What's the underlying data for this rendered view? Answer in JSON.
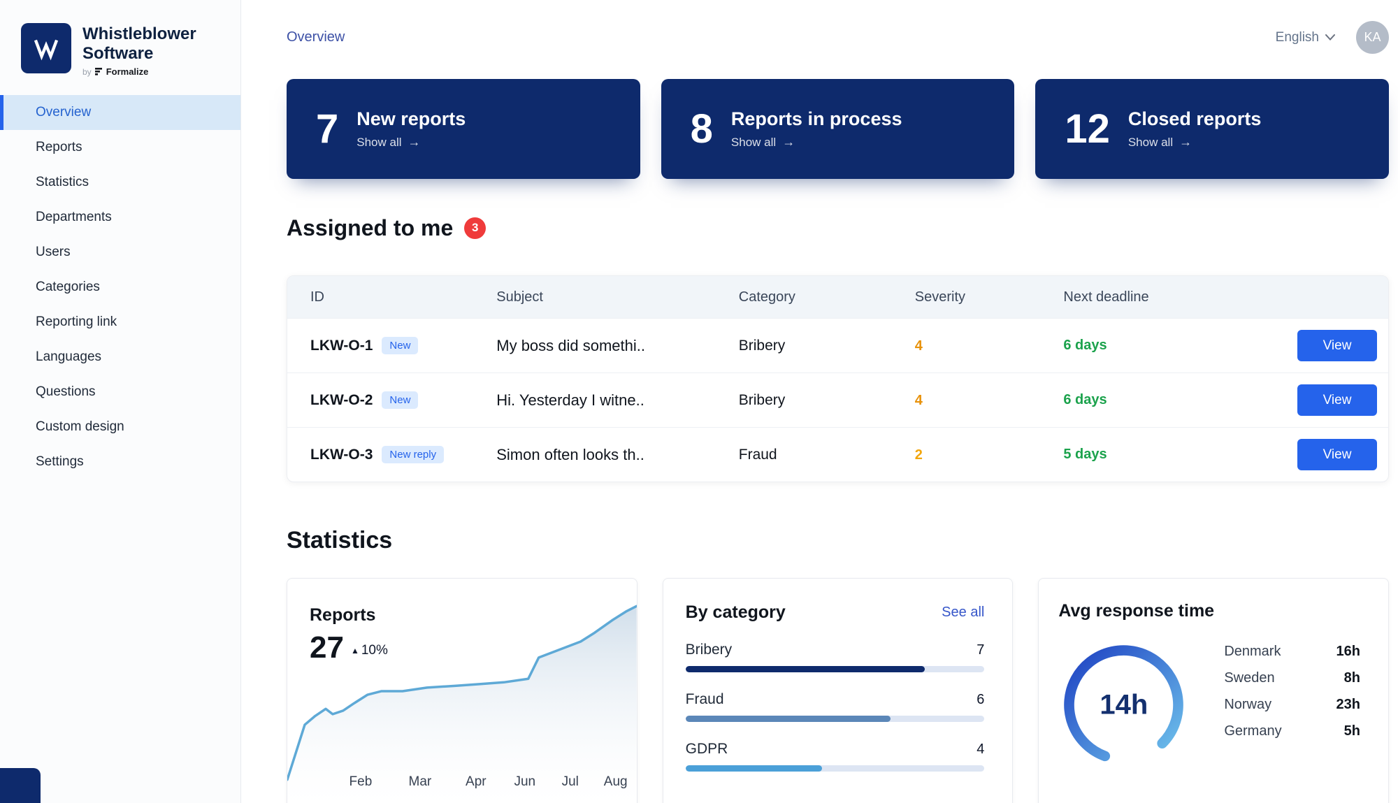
{
  "theme": {
    "navy": "#0e2a6c",
    "primary_blue": "#2563eb",
    "success_green": "#1ba24c",
    "danger_red": "#ef3b3b",
    "table_header_bg": "#f1f5f9",
    "tag_bg": "#dbeafe",
    "tag_text": "#2563eb"
  },
  "icons": {
    "arrow_right": "→",
    "trend_up": "▲"
  },
  "sidebar": {
    "brand": {
      "title_line1": "Whistleblower",
      "title_line2": "Software",
      "byline_prefix": "by",
      "byline_brand": "Formalize"
    },
    "items": [
      {
        "label": "Overview",
        "active": true
      },
      {
        "label": "Reports"
      },
      {
        "label": "Statistics"
      },
      {
        "label": "Departments"
      },
      {
        "label": "Users"
      },
      {
        "label": "Categories"
      },
      {
        "label": "Reporting link"
      },
      {
        "label": "Languages"
      },
      {
        "label": "Questions"
      },
      {
        "label": "Custom design"
      },
      {
        "label": "Settings"
      }
    ]
  },
  "header": {
    "breadcrumb": "Overview",
    "language": "English",
    "avatar": "KA"
  },
  "summary_cards": [
    {
      "count": "7",
      "label": "New reports",
      "link_label": "Show all"
    },
    {
      "count": "8",
      "label": "Reports in process",
      "link_label": "Show all"
    },
    {
      "count": "12",
      "label": "Closed reports",
      "link_label": "Show all"
    }
  ],
  "assigned": {
    "title": "Assigned to me",
    "badge": "3",
    "columns": {
      "id": "ID",
      "subject": "Subject",
      "category": "Category",
      "severity": "Severity",
      "deadline": "Next deadline"
    },
    "view_label": "View",
    "rows": [
      {
        "id": "LKW-O-1",
        "tag": "New",
        "subject": "My boss did somethi..",
        "category": "Bribery",
        "severity": "4",
        "severity_color": "#e8920b",
        "deadline": "6 days"
      },
      {
        "id": "LKW-O-2",
        "tag": "New",
        "subject": "Hi. Yesterday I witne..",
        "category": "Bribery",
        "severity": "4",
        "severity_color": "#e8920b",
        "deadline": "6 days"
      },
      {
        "id": "LKW-O-3",
        "tag": "New reply",
        "subject": "Simon often looks th..",
        "category": "Fraud",
        "severity": "2",
        "severity_color": "#f2a60d",
        "deadline": "5 days"
      }
    ]
  },
  "statistics": {
    "title": "Statistics",
    "reports_card": {
      "title": "Reports",
      "value": "27",
      "trend": "10%"
    },
    "category_card": {
      "title": "By category",
      "link_label": "See all",
      "scale_max": 8.75,
      "track_color": "#dde5f3",
      "items": [
        {
          "label": "Bribery",
          "value": 7,
          "display": "7",
          "color": "#0e2a6c"
        },
        {
          "label": "Fraud",
          "value": 6,
          "display": "6",
          "color": "#5b87b8"
        },
        {
          "label": "GDPR",
          "value": 4,
          "display": "4",
          "color": "#4ba0d8"
        }
      ]
    },
    "response_card": {
      "title": "Avg response time",
      "value": "14h",
      "gauge_colors": [
        "#1d40c2",
        "#6fc3ec"
      ],
      "items": [
        {
          "country": "Denmark",
          "time": "16h"
        },
        {
          "country": "Sweden",
          "time": "8h"
        },
        {
          "country": "Norway",
          "time": "23h"
        },
        {
          "country": "Germany",
          "time": "5h"
        }
      ]
    }
  },
  "chart_data": [
    {
      "type": "area",
      "title": "Reports",
      "total": 27,
      "trend_pct": 10,
      "x_labels": [
        "Feb",
        "Mar",
        "Apr",
        "Jun",
        "Jul",
        "Aug"
      ],
      "x_label_positions_pct": [
        21,
        38,
        54,
        68,
        81,
        94
      ],
      "points_pct": [
        [
          0,
          2
        ],
        [
          5,
          33
        ],
        [
          8,
          38
        ],
        [
          11,
          42
        ],
        [
          13,
          39
        ],
        [
          16,
          41
        ],
        [
          19,
          45
        ],
        [
          23,
          50
        ],
        [
          27,
          52
        ],
        [
          33,
          52
        ],
        [
          40,
          54
        ],
        [
          48,
          55
        ],
        [
          55,
          56
        ],
        [
          62,
          57
        ],
        [
          69,
          59
        ],
        [
          72,
          71
        ],
        [
          76,
          74
        ],
        [
          80,
          77
        ],
        [
          84,
          80
        ],
        [
          88,
          85
        ],
        [
          93,
          92
        ],
        [
          97,
          97
        ],
        [
          100,
          100
        ]
      ],
      "line_color": "#5ea9d6",
      "fill_top": "#c2d4e4",
      "fill_bottom": "#ffffff"
    },
    {
      "type": "bar",
      "title": "By category",
      "categories": [
        "Bribery",
        "Fraud",
        "GDPR"
      ],
      "values": [
        7,
        6,
        4
      ],
      "xlim": [
        0,
        8.75
      ]
    },
    {
      "type": "gauge",
      "title": "Avg response time",
      "value_label": "14h",
      "entries": [
        {
          "label": "Denmark",
          "value": "16h"
        },
        {
          "label": "Sweden",
          "value": "8h"
        },
        {
          "label": "Norway",
          "value": "23h"
        },
        {
          "label": "Germany",
          "value": "5h"
        }
      ]
    }
  ]
}
